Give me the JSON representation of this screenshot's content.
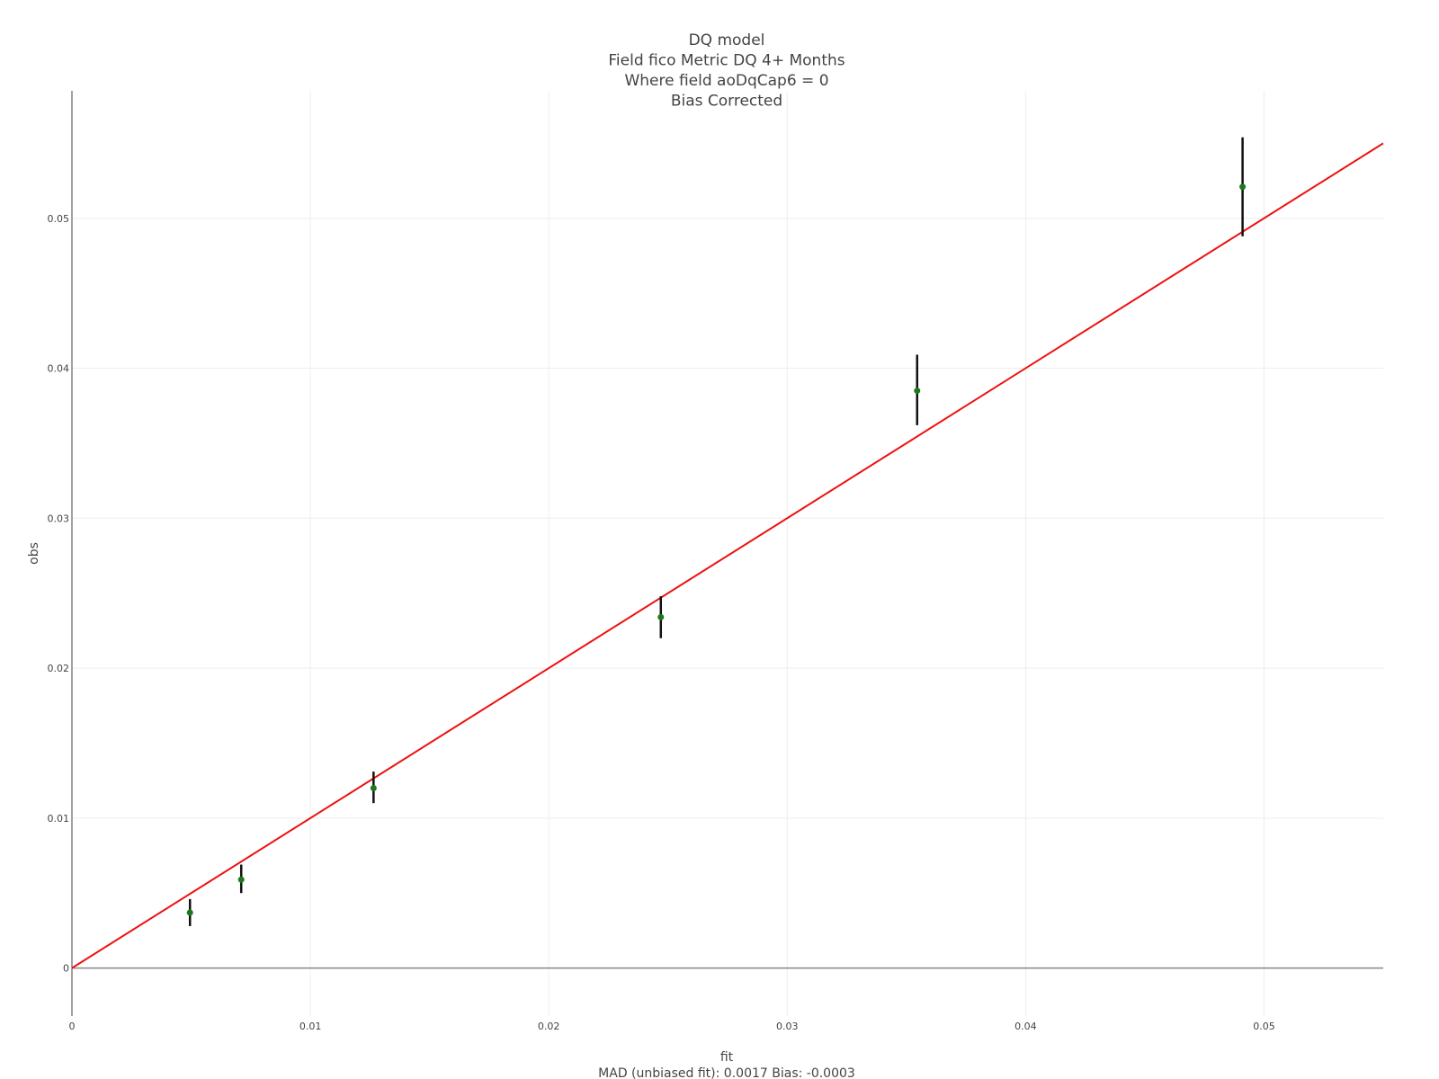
{
  "chart_data": {
    "type": "scatter",
    "title_lines": [
      "DQ model",
      "Field fico Metric DQ 4+ Months",
      "Where field aoDqCap6 = 0",
      "Bias Corrected"
    ],
    "xlabel": "fit",
    "xlabel_sub": "MAD (unbiased fit): 0.0017 Bias: -0.0003",
    "ylabel": "obs",
    "xlim": [
      0,
      0.055
    ],
    "ylim": [
      -0.0032,
      0.0585
    ],
    "x_ticks": [
      0,
      0.01,
      0.02,
      0.03,
      0.04,
      0.05
    ],
    "x_tick_labels": [
      "0",
      "0.01",
      "0.02",
      "0.03",
      "0.04",
      "0.05"
    ],
    "y_ticks": [
      0,
      0.01,
      0.02,
      0.03,
      0.04,
      0.05
    ],
    "y_tick_labels": [
      "0",
      "0.01",
      "0.02",
      "0.03",
      "0.04",
      "0.05"
    ],
    "grid": true,
    "points": [
      {
        "x": 0.00495,
        "y": 0.0037,
        "y_low": 0.0028,
        "y_high": 0.0046
      },
      {
        "x": 0.0071,
        "y": 0.0059,
        "y_low": 0.005,
        "y_high": 0.0069
      },
      {
        "x": 0.01265,
        "y": 0.012,
        "y_low": 0.011,
        "y_high": 0.0131
      },
      {
        "x": 0.0247,
        "y": 0.0234,
        "y_low": 0.022,
        "y_high": 0.0248
      },
      {
        "x": 0.03545,
        "y": 0.0385,
        "y_low": 0.0362,
        "y_high": 0.0409
      },
      {
        "x": 0.0491,
        "y": 0.0521,
        "y_low": 0.0488,
        "y_high": 0.0554
      }
    ],
    "reference_line": {
      "x": [
        0,
        0.055
      ],
      "y": [
        0,
        0.055
      ]
    },
    "colors": {
      "point": "#1a7a1a",
      "errorbar": "#111111",
      "reference_line": "#ee1111",
      "axis": "#444444",
      "zero_line": "#888888"
    }
  }
}
